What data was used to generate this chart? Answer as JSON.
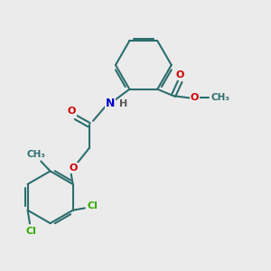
{
  "bg_color": "#ebebeb",
  "bond_color": "#2d6e6e",
  "bond_width": 1.5,
  "atom_colors": {
    "O": "#cc0000",
    "N": "#0000cc",
    "Cl": "#33aa00",
    "C": "#2d6e6e",
    "H": "#555555"
  },
  "font_size": 8,
  "fig_size": [
    3.0,
    3.0
  ],
  "dpi": 100
}
